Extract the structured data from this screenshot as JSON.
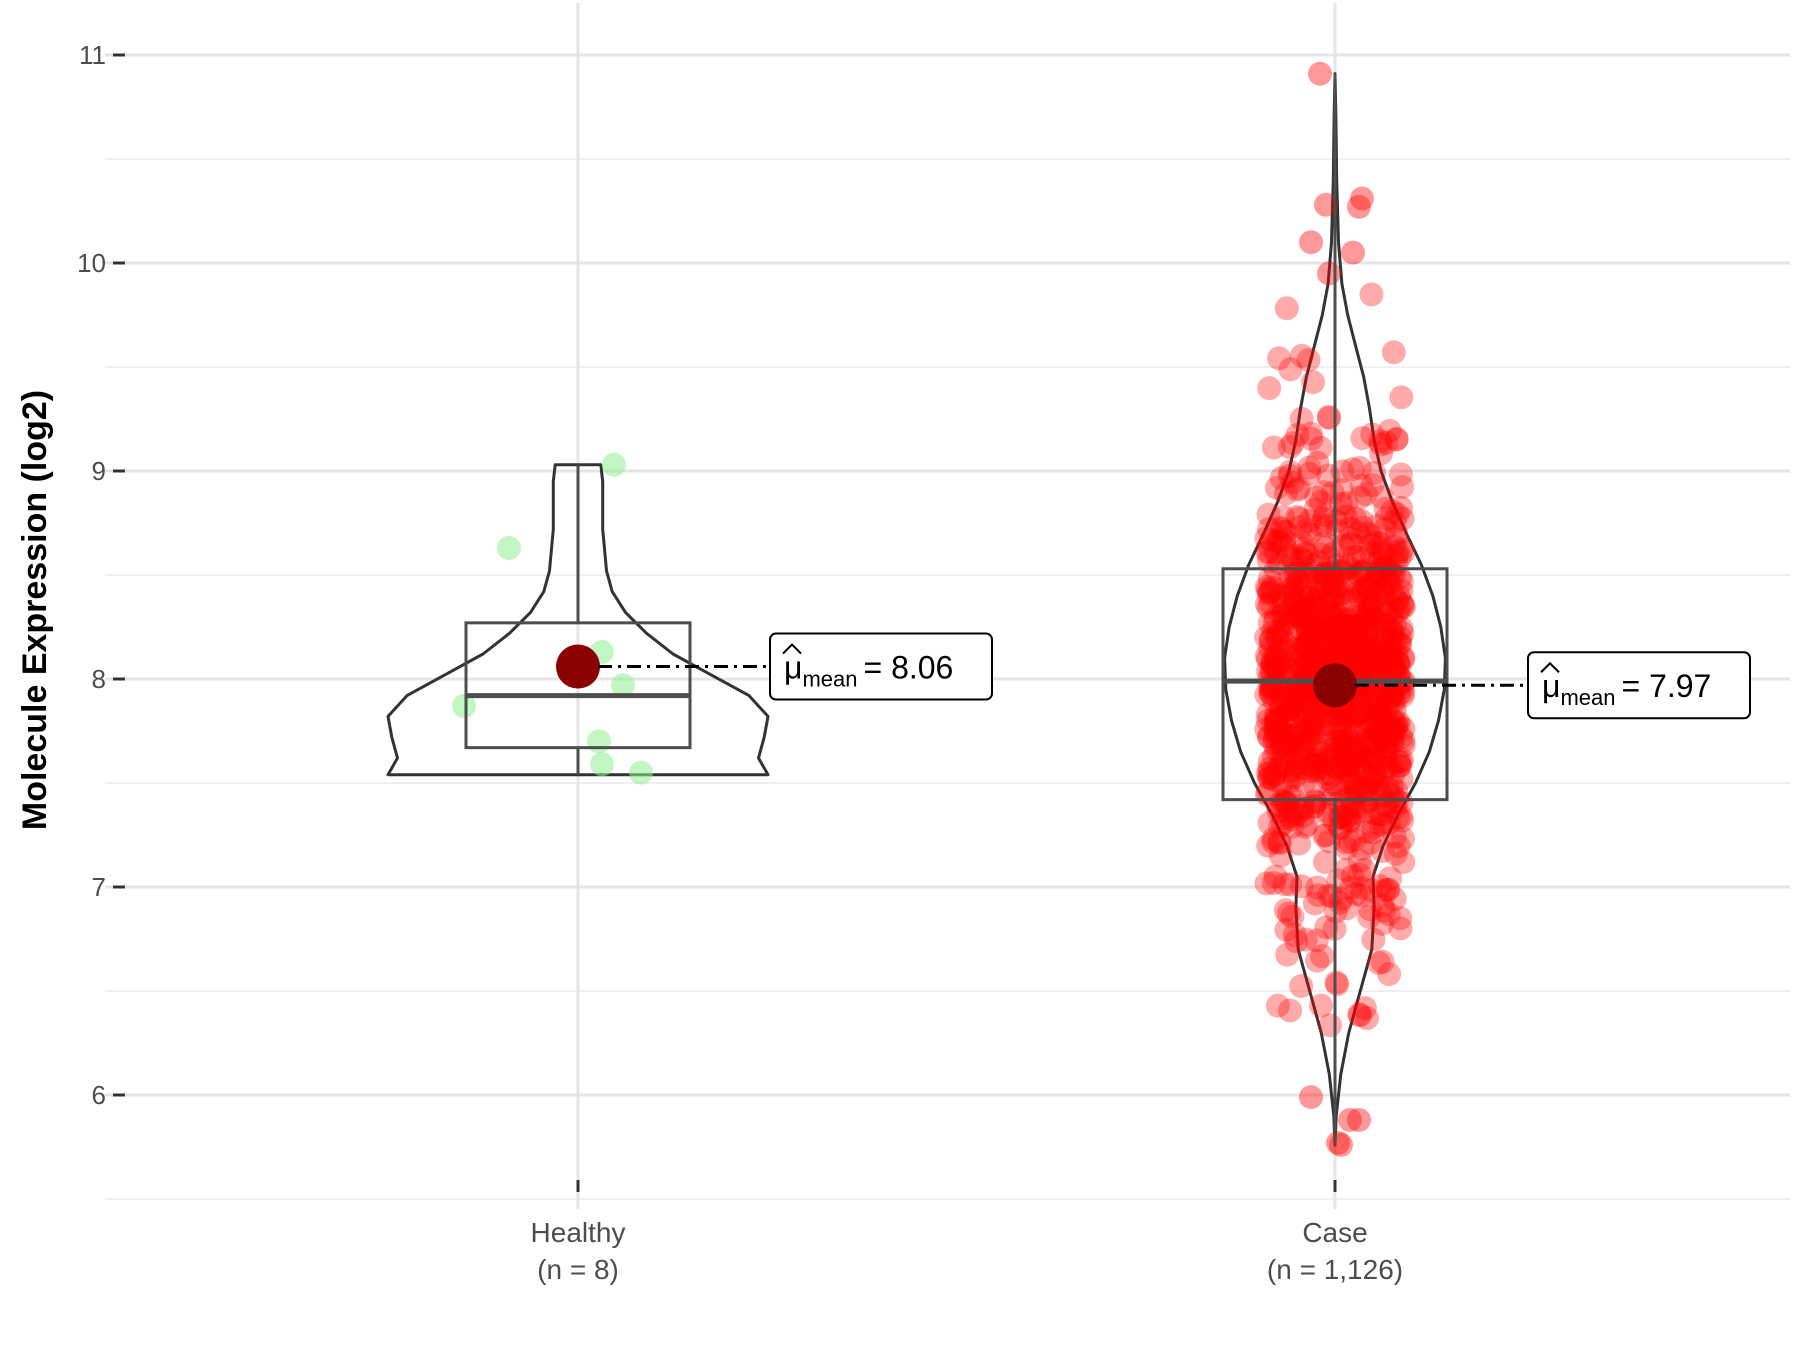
{
  "chart_data": {
    "type": "scatter",
    "subtype": "violin-box-jitter",
    "title": "",
    "xlabel": "",
    "ylabel": "Molecule Expression (log2)",
    "ylim": [
      5.45,
      11.25
    ],
    "yticks": [
      6,
      7,
      8,
      9,
      10,
      11
    ],
    "ytick_labels": [
      "6",
      "7",
      "8",
      "9",
      "10",
      "11"
    ],
    "grid": true,
    "legend": "none",
    "mean_symbol": "μ",
    "mean_subscript": "mean",
    "groups": [
      {
        "label": "Healthy",
        "n_label": "(n = 8)",
        "color": "#90ee90",
        "mean": 8.06,
        "mean_label": "= 8.06",
        "box": {
          "q1": 7.67,
          "median": 7.92,
          "q3": 8.27,
          "whisker_low": 7.54,
          "whisker_high": 9.03
        },
        "violin": {
          "min": 7.54,
          "max": 9.03,
          "profile": [
            [
              7.54,
              1.0
            ],
            [
              7.62,
              0.95
            ],
            [
              7.72,
              0.98
            ],
            [
              7.82,
              1.0
            ],
            [
              7.92,
              0.9
            ],
            [
              8.02,
              0.7
            ],
            [
              8.12,
              0.5
            ],
            [
              8.22,
              0.36
            ],
            [
              8.32,
              0.25
            ],
            [
              8.42,
              0.18
            ],
            [
              8.52,
              0.15
            ],
            [
              8.62,
              0.14
            ],
            [
              8.72,
              0.13
            ],
            [
              8.82,
              0.13
            ],
            [
              8.95,
              0.13
            ],
            [
              9.03,
              0.12
            ]
          ]
        },
        "points": [
          {
            "x_offset": 0.12,
            "y": 9.03
          },
          {
            "x_offset": -0.23,
            "y": 8.63
          },
          {
            "x_offset": 0.08,
            "y": 8.13
          },
          {
            "x_offset": 0.15,
            "y": 7.97
          },
          {
            "x_offset": -0.38,
            "y": 7.87
          },
          {
            "x_offset": 0.07,
            "y": 7.7
          },
          {
            "x_offset": 0.08,
            "y": 7.59
          },
          {
            "x_offset": 0.21,
            "y": 7.55
          }
        ]
      },
      {
        "label": "Case",
        "n_label": "(n = 1,126)",
        "color": "#ff0000",
        "mean": 7.97,
        "mean_label": "= 7.97",
        "n_points": 1126,
        "box": {
          "q1": 7.42,
          "median": 7.99,
          "q3": 8.53,
          "whisker_low": 5.76,
          "whisker_high": 10.91
        },
        "violin": {
          "min": 5.76,
          "max": 10.91,
          "profile": [
            [
              5.76,
              0.0
            ],
            [
              5.9,
              0.01
            ],
            [
              6.1,
              0.05
            ],
            [
              6.3,
              0.12
            ],
            [
              6.5,
              0.22
            ],
            [
              6.7,
              0.32
            ],
            [
              6.9,
              0.34
            ],
            [
              7.05,
              0.33
            ],
            [
              7.2,
              0.42
            ],
            [
              7.35,
              0.55
            ],
            [
              7.5,
              0.7
            ],
            [
              7.65,
              0.82
            ],
            [
              7.8,
              0.9
            ],
            [
              7.95,
              0.95
            ],
            [
              8.1,
              0.96
            ],
            [
              8.25,
              0.92
            ],
            [
              8.4,
              0.85
            ],
            [
              8.55,
              0.75
            ],
            [
              8.7,
              0.62
            ],
            [
              8.85,
              0.5
            ],
            [
              9.0,
              0.4
            ],
            [
              9.15,
              0.34
            ],
            [
              9.3,
              0.3
            ],
            [
              9.45,
              0.25
            ],
            [
              9.6,
              0.18
            ],
            [
              9.75,
              0.11
            ],
            [
              9.9,
              0.06
            ],
            [
              10.1,
              0.03
            ],
            [
              10.4,
              0.015
            ],
            [
              10.7,
              0.008
            ],
            [
              10.91,
              0.0
            ]
          ]
        },
        "outlier_points": [
          {
            "x_offset": -0.05,
            "y": 10.91
          },
          {
            "x_offset": -0.03,
            "y": 10.28
          },
          {
            "x_offset": 0.08,
            "y": 10.27
          },
          {
            "x_offset": 0.09,
            "y": 10.31
          },
          {
            "x_offset": -0.08,
            "y": 10.1
          },
          {
            "x_offset": 0.06,
            "y": 10.05
          },
          {
            "x_offset": -0.02,
            "y": 9.95
          },
          {
            "x_offset": -0.08,
            "y": 5.99
          },
          {
            "x_offset": 0.02,
            "y": 5.76
          },
          {
            "x_offset": 0.01,
            "y": 5.77
          },
          {
            "x_offset": 0.05,
            "y": 5.88
          },
          {
            "x_offset": 0.08,
            "y": 5.88
          }
        ]
      }
    ]
  }
}
